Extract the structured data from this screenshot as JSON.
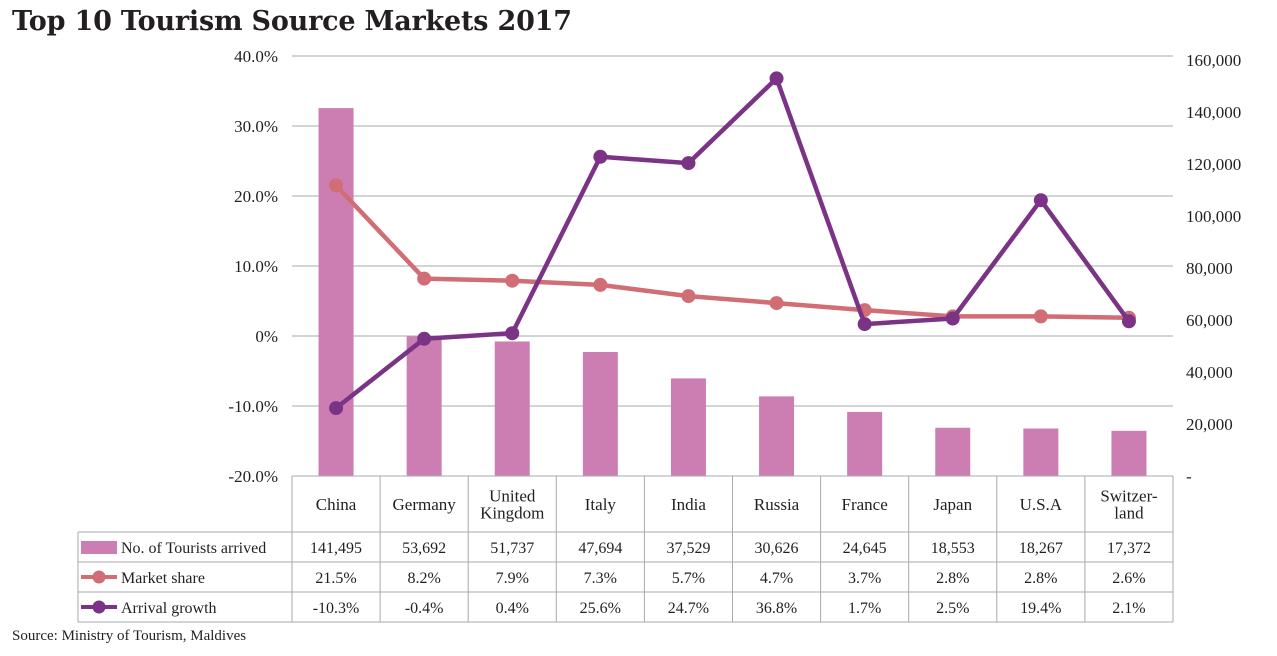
{
  "chart_data": {
    "type": "bar",
    "title": "Top 10 Tourism Source Markets 2017",
    "source": "Source: Ministry of Tourism, Maldives",
    "categories": [
      [
        "China"
      ],
      [
        "Germany"
      ],
      [
        "United",
        "Kingdom"
      ],
      [
        "Italy"
      ],
      [
        "India"
      ],
      [
        "Russia"
      ],
      [
        "France"
      ],
      [
        "Japan"
      ],
      [
        "U.S.A"
      ],
      [
        "Switzer-",
        "land"
      ]
    ],
    "left_axis": {
      "min": -20,
      "max": 40,
      "step": 10,
      "tick_labels": [
        "-20.0%",
        "-10.0%",
        "0%",
        "10.0%",
        "20.0%",
        "30.0%",
        "40.0%"
      ]
    },
    "right_axis": {
      "min": 0,
      "max": 160000,
      "step": 20000,
      "tick_labels": [
        "-",
        "20,000",
        "40,000",
        "60,000",
        "80,000",
        "100,000",
        "120,000",
        "140,000",
        "160,000"
      ]
    },
    "series": [
      {
        "name": "No. of Tourists arrived",
        "type": "bar",
        "axis": "right",
        "color": "#cc7eb3",
        "values": [
          141495,
          53692,
          51737,
          47694,
          37529,
          30626,
          24645,
          18553,
          18267,
          17372
        ],
        "labels": [
          "141,495",
          "53,692",
          "51,737",
          "47,694",
          "37,529",
          "30,626",
          "24,645",
          "18,553",
          "18,267",
          "17,372"
        ]
      },
      {
        "name": "Market share",
        "type": "line",
        "axis": "left",
        "color": "#d16d74",
        "values": [
          21.5,
          8.2,
          7.9,
          7.3,
          5.7,
          4.7,
          3.7,
          2.8,
          2.8,
          2.6
        ],
        "labels": [
          "21.5%",
          "8.2%",
          "7.9%",
          "7.3%",
          "5.7%",
          "4.7%",
          "3.7%",
          "2.8%",
          "2.8%",
          "2.6%"
        ]
      },
      {
        "name": "Arrival growth",
        "type": "line",
        "axis": "left",
        "color": "#7b3386",
        "values": [
          -10.3,
          -0.4,
          0.4,
          25.6,
          24.7,
          36.8,
          1.7,
          2.5,
          19.4,
          2.1
        ],
        "labels": [
          "-10.3%",
          "-0.4%",
          "0.4%",
          "25.6%",
          "24.7%",
          "36.8%",
          "1.7%",
          "2.5%",
          "19.4%",
          "2.1%"
        ]
      }
    ]
  }
}
